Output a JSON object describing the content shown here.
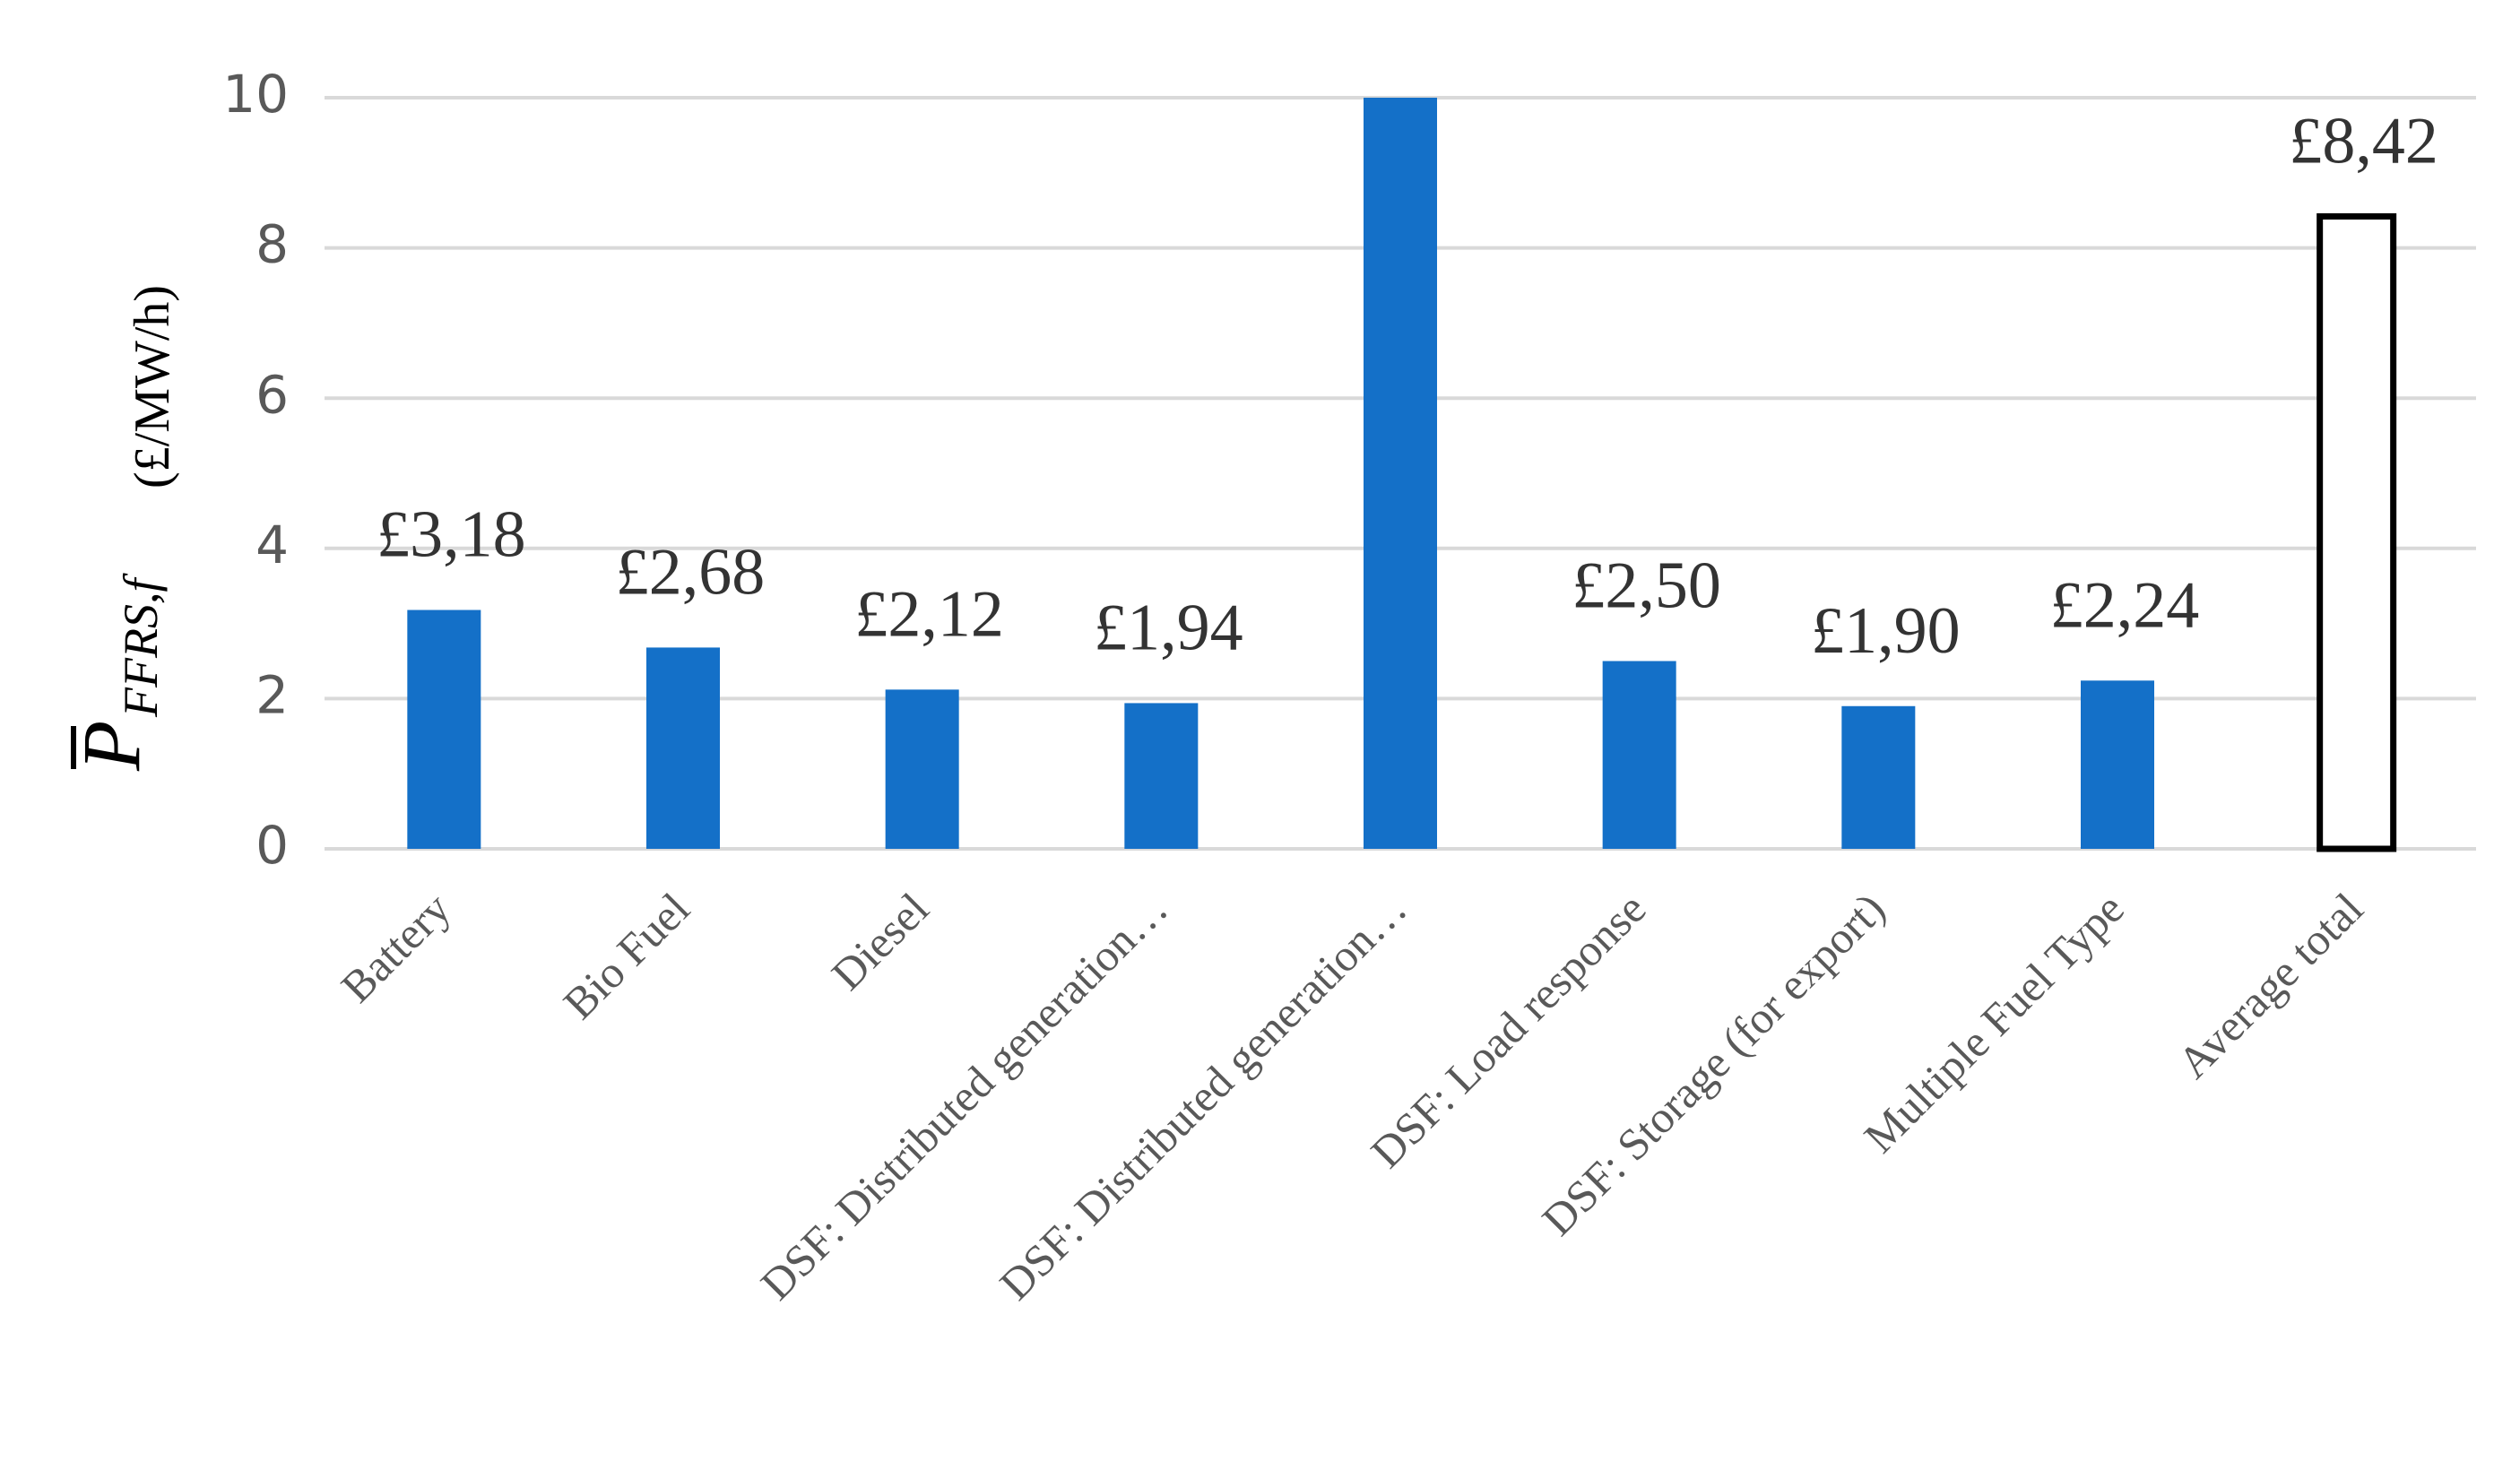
{
  "chart_data": {
    "type": "bar",
    "ylabel": {
      "symbol": "P",
      "subscript": "FFRS,f",
      "unit": "(£/MW/h)"
    },
    "categories": [
      "Battery",
      "Bio Fuel",
      "Diesel",
      "DSF: Distributed generation…",
      "DSF: Distributed generation…",
      "DSF: Load response",
      "DSF: Storage (for export)",
      "Multiple Fuel Type",
      "Average total"
    ],
    "values": [
      3.18,
      2.68,
      2.12,
      1.94,
      10,
      2.5,
      1.9,
      2.24,
      8.42
    ],
    "value_labels": [
      "£3,18",
      "£2,68",
      "£2,12",
      "£1,94",
      null,
      "£2,50",
      "£1,90",
      "£2,24",
      "£8,42"
    ],
    "colors": [
      "#1470c8",
      "#1470c8",
      "#1470c8",
      "#1470c8",
      "#1470c8",
      "#1470c8",
      "#1470c8",
      "#1470c8",
      "#ffffff"
    ],
    "edge_colors": [
      null,
      null,
      null,
      null,
      null,
      null,
      null,
      null,
      "#000000"
    ],
    "ylim": [
      0,
      10
    ],
    "yticks": [
      0,
      2,
      4,
      6,
      8,
      10
    ],
    "grid": true
  }
}
